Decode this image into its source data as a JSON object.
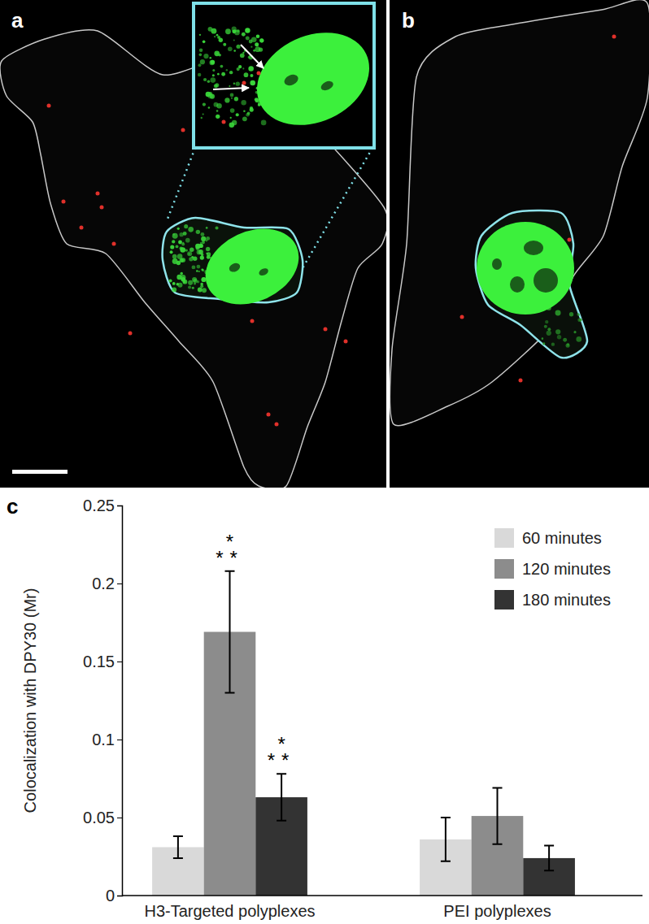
{
  "panel_labels": [
    "a",
    "b",
    "c"
  ],
  "chart_data": {
    "type": "bar",
    "y_label": "Colocalization with DPY30 (Mr)",
    "categories": [
      "H3-Targeted polyplexes",
      "PEI polyplexes"
    ],
    "series": [
      {
        "name": "60 minutes",
        "color": "#d9d9d9",
        "values": [
          0.031,
          0.036
        ],
        "errors": [
          0.007,
          0.014
        ]
      },
      {
        "name": "120 minutes",
        "color": "#8c8c8c",
        "values": [
          0.169,
          0.051
        ],
        "errors": [
          0.039,
          0.018
        ],
        "significance": [
          "***",
          null
        ]
      },
      {
        "name": "180 minutes",
        "color": "#333333",
        "values": [
          0.063,
          0.024
        ],
        "errors": [
          0.015,
          0.008
        ],
        "significance": [
          "***",
          null
        ]
      }
    ],
    "ylim": [
      0,
      0.25
    ],
    "yticks": [
      0,
      0.05,
      0.1,
      0.15,
      0.2,
      0.25
    ],
    "legend": "upper right",
    "grid": false
  }
}
